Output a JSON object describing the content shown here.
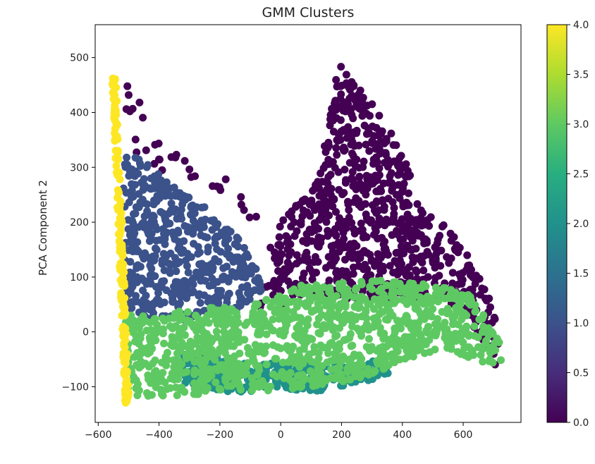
{
  "chart_data": {
    "type": "scatter",
    "title": "GMM Clusters",
    "xlabel": "",
    "ylabel": "PCA Component 2",
    "xlim": [
      -610,
      790
    ],
    "ylim": [
      -165,
      560
    ],
    "x_ticks": [
      -600,
      -400,
      -200,
      0,
      200,
      400,
      600
    ],
    "x_tick_labels": [
      "−600",
      "−400",
      "−200",
      "0",
      "200",
      "400",
      "600"
    ],
    "y_ticks": [
      -100,
      0,
      100,
      200,
      300,
      400,
      500
    ],
    "y_tick_labels": [
      "−100",
      "0",
      "100",
      "200",
      "300",
      "400",
      "500"
    ],
    "grid": false,
    "colormap": "viridis",
    "colorbar": {
      "range": [
        0.0,
        4.0
      ],
      "ticks": [
        0.0,
        0.5,
        1.0,
        1.5,
        2.0,
        2.5,
        3.0,
        3.5,
        4.0
      ],
      "tick_labels": [
        "0.0",
        "0.5",
        "1.0",
        "1.5",
        "2.0",
        "2.5",
        "3.0",
        "3.5",
        "4.0"
      ],
      "colors": [
        "#440154",
        "#472d7b",
        "#3b528b",
        "#2c728e",
        "#21918c",
        "#28ae80",
        "#5ec962",
        "#addc30",
        "#fde725"
      ]
    },
    "clusters": [
      {
        "label": 0,
        "color": "#440154",
        "regions": [
          {
            "polygon": [
              [
                170,
                525
              ],
              [
                215,
                470
              ],
              [
                330,
                400
              ],
              [
                470,
                240
              ],
              [
                620,
                140
              ],
              [
                720,
                40
              ],
              [
                715,
                -70
              ],
              [
                600,
                40
              ],
              [
                500,
                60
              ],
              [
                380,
                55
              ],
              [
                200,
                60
              ],
              [
                80,
                70
              ],
              [
                -20,
                40
              ],
              [
                -70,
                40
              ],
              [
                -40,
                150
              ],
              [
                20,
                220
              ],
              [
                110,
                260
              ],
              [
                160,
                380
              ],
              [
                190,
                500
              ]
            ],
            "density": 0.0048
          },
          {
            "polygon": [
              [
                -530,
                470
              ],
              [
                -500,
                470
              ],
              [
                -420,
                360
              ],
              [
                -320,
                320
              ],
              [
                -220,
                290
              ],
              [
                -90,
                270
              ],
              [
                -60,
                160
              ],
              [
                -130,
                220
              ],
              [
                -230,
                260
              ],
              [
                -330,
                280
              ],
              [
                -420,
                300
              ],
              [
                -490,
                330
              ],
              [
                -525,
                400
              ]
            ],
            "density": 0.0012
          }
        ]
      },
      {
        "label": 1,
        "color": "#3b528b",
        "regions": [
          {
            "polygon": [
              [
                -520,
                330
              ],
              [
                -470,
                320
              ],
              [
                -380,
                280
              ],
              [
                -280,
                240
              ],
              [
                -160,
                190
              ],
              [
                -70,
                110
              ],
              [
                -60,
                70
              ],
              [
                -140,
                40
              ],
              [
                -290,
                20
              ],
              [
                -420,
                20
              ],
              [
                -510,
                20
              ]
            ],
            "density": 0.0055
          }
        ]
      },
      {
        "label": 2,
        "color": "#21918c",
        "regions": [
          {
            "polygon": [
              [
                -360,
                -40
              ],
              [
                -200,
                -40
              ],
              [
                -80,
                -60
              ],
              [
                40,
                -50
              ],
              [
                200,
                -60
              ],
              [
                340,
                -50
              ],
              [
                380,
                -75
              ],
              [
                250,
                -95
              ],
              [
                120,
                -110
              ],
              [
                0,
                -105
              ],
              [
                -160,
                -110
              ],
              [
                -320,
                -95
              ]
            ],
            "density": 0.009
          }
        ]
      },
      {
        "label": 3,
        "color": "#5ec962",
        "regions": [
          {
            "polygon": [
              [
                -510,
                30
              ],
              [
                -380,
                35
              ],
              [
                -220,
                45
              ],
              [
                -90,
                50
              ],
              [
                20,
                80
              ],
              [
                140,
                95
              ],
              [
                300,
                95
              ],
              [
                470,
                90
              ],
              [
                620,
                70
              ],
              [
                720,
                -10
              ],
              [
                730,
                -70
              ],
              [
                640,
                -50
              ],
              [
                520,
                -30
              ],
              [
                400,
                -60
              ],
              [
                300,
                -80
              ],
              [
                160,
                -95
              ],
              [
                20,
                -105
              ],
              [
                -120,
                -110
              ],
              [
                -300,
                -115
              ],
              [
                -480,
                -120
              ],
              [
                -510,
                -115
              ]
            ],
            "density": 0.006
          }
        ]
      },
      {
        "label": 4,
        "color": "#fde725",
        "regions": [
          {
            "line": [
              [
                -548,
                470
              ],
              [
                -505,
                -130
              ]
            ],
            "width": 14,
            "count": 170
          }
        ]
      }
    ]
  }
}
